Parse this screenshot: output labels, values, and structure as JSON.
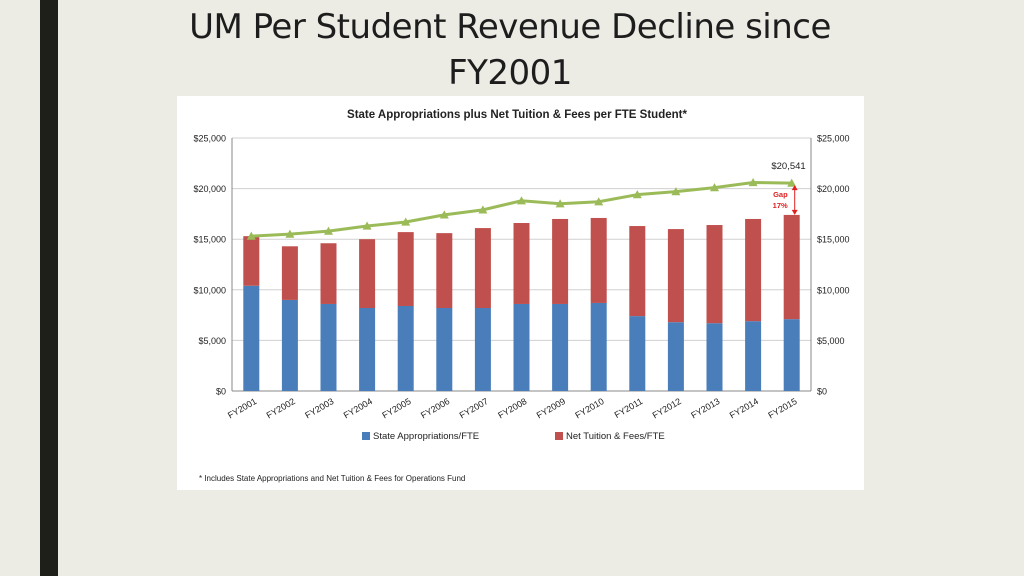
{
  "slide": {
    "title": "UM Per Student Revenue Decline since FY2001"
  },
  "footnote": "* Includes State Appropriations and Net Tuition & Fees for Operations Fund",
  "colors": {
    "state": "#4a7ebb",
    "tuition": "#c0504d",
    "total_line": "#9bbb59",
    "gap_arrow": "#e02020"
  },
  "chart_data": {
    "type": "bar",
    "stacked": true,
    "title": "State Appropriations plus Net Tuition & Fees per FTE Student*",
    "categories": [
      "FY2001",
      "FY2002",
      "FY2003",
      "FY2004",
      "FY2005",
      "FY2006",
      "FY2007",
      "FY2008",
      "FY2009",
      "FY2010",
      "FY2011",
      "FY2012",
      "FY2013",
      "FY2014",
      "FY2015"
    ],
    "series": [
      {
        "name": "State Appropriations/FTE",
        "values": [
          10400,
          9000,
          8600,
          8200,
          8400,
          8200,
          8200,
          8600,
          8600,
          8700,
          7400,
          6800,
          6700,
          6900,
          7100
        ]
      },
      {
        "name": "Net Tuition & Fees/FTE",
        "values": [
          4900,
          5300,
          6000,
          6800,
          7300,
          7400,
          7900,
          8000,
          8400,
          8400,
          8900,
          9200,
          9700,
          10100,
          10300
        ]
      }
    ],
    "line": {
      "values": [
        15300,
        15500,
        15800,
        16300,
        16700,
        17400,
        17900,
        18800,
        18500,
        18700,
        19400,
        19700,
        20100,
        20600,
        20541
      ]
    },
    "ylim": [
      0,
      25000
    ],
    "y_ticks": [
      "$0",
      "$5,000",
      "$10,000",
      "$15,000",
      "$20,000",
      "$25,000"
    ],
    "y_tick_values": [
      0,
      5000,
      10000,
      15000,
      20000,
      25000
    ],
    "xlabel": "",
    "ylabel": "",
    "legend_position": "bottom",
    "grid": true,
    "annotations": {
      "last_value_label": "$20,541",
      "gap_label": "Gap",
      "gap_percent": "17%"
    }
  }
}
